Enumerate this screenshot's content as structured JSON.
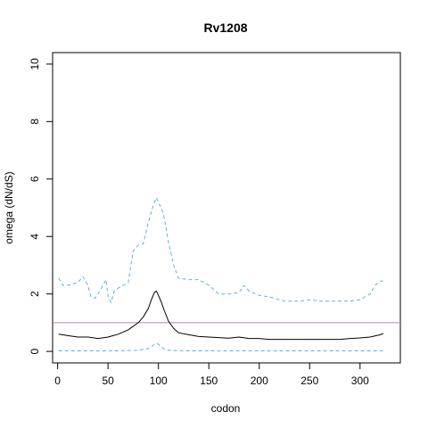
{
  "chart_data": {
    "type": "line",
    "title": "Rv1208",
    "xlabel": "codon",
    "ylabel": "omega (dN/dS)",
    "xlim": [
      -5,
      340
    ],
    "ylim": [
      -0.4,
      10.4
    ],
    "x_ticks": [
      0,
      50,
      100,
      150,
      200,
      250,
      300
    ],
    "y_ticks": [
      0,
      2,
      4,
      6,
      8,
      10
    ],
    "grid": false,
    "legend": "none",
    "reference_line": {
      "y": 1,
      "color": "#cc79a7"
    },
    "series": [
      {
        "style": "solid",
        "color": "#000000",
        "x": [
          1,
          10,
          20,
          30,
          40,
          50,
          60,
          70,
          80,
          85,
          90,
          93,
          96,
          98,
          100,
          103,
          106,
          110,
          115,
          120,
          130,
          140,
          150,
          160,
          170,
          180,
          190,
          200,
          210,
          220,
          230,
          240,
          250,
          260,
          270,
          280,
          290,
          300,
          310,
          320,
          323
        ],
        "y": [
          0.6,
          0.55,
          0.5,
          0.5,
          0.45,
          0.5,
          0.6,
          0.75,
          1.0,
          1.2,
          1.5,
          1.8,
          2.05,
          2.1,
          1.95,
          1.7,
          1.4,
          1.05,
          0.8,
          0.65,
          0.58,
          0.52,
          0.5,
          0.48,
          0.46,
          0.5,
          0.45,
          0.45,
          0.42,
          0.42,
          0.42,
          0.42,
          0.42,
          0.42,
          0.42,
          0.42,
          0.45,
          0.47,
          0.5,
          0.58,
          0.62
        ]
      },
      {
        "style": "dashed",
        "color": "#56b4e9",
        "x": [
          1,
          5,
          10,
          15,
          20,
          25,
          30,
          33,
          37,
          40,
          45,
          48,
          50,
          53,
          56,
          60,
          65,
          70,
          75,
          80,
          85,
          90,
          95,
          98,
          100,
          105,
          110,
          115,
          120,
          130,
          140,
          150,
          160,
          170,
          180,
          185,
          190,
          200,
          210,
          220,
          225,
          230,
          240,
          250,
          260,
          270,
          280,
          290,
          300,
          310,
          315,
          320,
          323
        ],
        "y": [
          2.55,
          2.3,
          2.3,
          2.35,
          2.4,
          2.6,
          2.3,
          1.9,
          1.85,
          2.0,
          2.3,
          2.5,
          1.9,
          1.7,
          2.1,
          2.2,
          2.3,
          2.4,
          3.5,
          3.7,
          3.75,
          4.5,
          5.1,
          5.35,
          5.2,
          4.8,
          3.8,
          3.0,
          2.55,
          2.5,
          2.5,
          2.3,
          2.0,
          2.0,
          2.05,
          2.3,
          2.1,
          1.95,
          1.9,
          1.8,
          1.75,
          1.75,
          1.75,
          1.8,
          1.75,
          1.75,
          1.75,
          1.75,
          1.8,
          2.0,
          2.3,
          2.45,
          2.45
        ]
      },
      {
        "style": "dashed",
        "color": "#56b4e9",
        "x": [
          1,
          20,
          40,
          60,
          80,
          90,
          95,
          98,
          100,
          103,
          106,
          110,
          130,
          160,
          200,
          250,
          300,
          323
        ],
        "y": [
          0.02,
          0.02,
          0.02,
          0.02,
          0.04,
          0.1,
          0.22,
          0.28,
          0.25,
          0.15,
          0.08,
          0.04,
          0.02,
          0.02,
          0.02,
          0.02,
          0.02,
          0.02
        ]
      }
    ]
  }
}
